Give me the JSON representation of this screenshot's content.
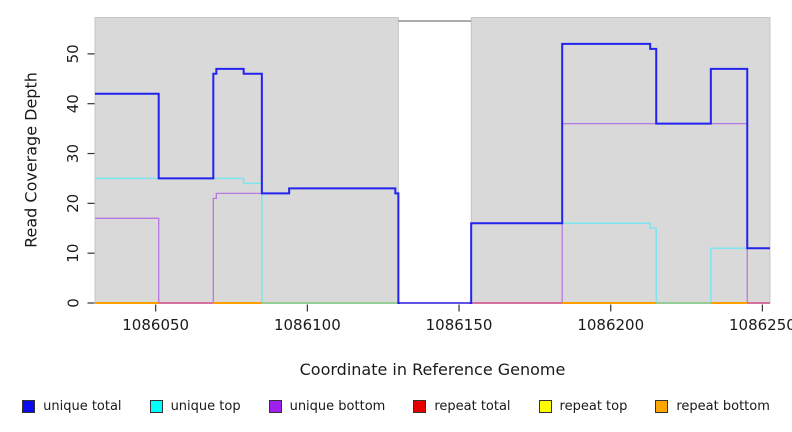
{
  "chart_data": {
    "type": "line",
    "step": true,
    "title": "",
    "xlabel": "Coordinate in Reference Genome",
    "ylabel": "Read Coverage Depth",
    "x_domain": [
      1086030,
      1086252.5
    ],
    "y_domain": [
      0,
      57.3
    ],
    "x_ticks": [
      1086050,
      1086100,
      1086150,
      1086200,
      1086250
    ],
    "y_ticks": [
      0,
      10,
      20,
      30,
      40,
      50
    ],
    "grid": false,
    "axis_color": "#333333",
    "text_color": "#1a1a1a",
    "plot_background": "#d9d9d9",
    "background_regions": [
      {
        "x0": 1086030,
        "x1": 1086130,
        "color": "#d9d9d9",
        "border": "#bcbcbc"
      },
      {
        "x0": 1086154,
        "x1": 1086252.5,
        "color": "#d9d9d9",
        "border": "#bcbcbc"
      }
    ],
    "gap_region": {
      "x0": 1086130,
      "x1": 1086154,
      "top_value": 56.6,
      "border_color": "#919191"
    },
    "series": [
      {
        "name": "repeat total",
        "color": "#e60000",
        "width": 2,
        "points": [
          [
            1086030,
            0
          ]
        ]
      },
      {
        "name": "repeat top",
        "color": "#ffff00",
        "width": 2,
        "points": [
          [
            1086030,
            0
          ]
        ]
      },
      {
        "name": "repeat bottom",
        "color": "#ffa500",
        "width": 2,
        "points": [
          [
            1086030,
            0
          ]
        ]
      },
      {
        "name": "unique top",
        "color": "#7fe5ef",
        "width": 1.5,
        "points": [
          [
            1086030,
            25
          ],
          [
            1086079,
            24
          ],
          [
            1086085,
            0
          ],
          [
            1086154,
            16
          ],
          [
            1086213,
            15
          ],
          [
            1086215,
            0
          ],
          [
            1086233,
            11
          ]
        ]
      },
      {
        "name": "unique bottom",
        "color": "#b778e3",
        "width": 1.3,
        "points": [
          [
            1086030,
            17
          ],
          [
            1086051,
            0
          ],
          [
            1086069,
            21
          ],
          [
            1086070,
            22
          ],
          [
            1086094,
            23
          ],
          [
            1086129,
            22
          ],
          [
            1086130,
            0
          ],
          [
            1086184,
            36
          ],
          [
            1086245,
            0
          ]
        ]
      },
      {
        "name": "unique total",
        "color": "#2323ee",
        "width": 2,
        "points": [
          [
            1086030,
            42
          ],
          [
            1086051,
            25
          ],
          [
            1086069,
            46
          ],
          [
            1086070,
            47
          ],
          [
            1086079,
            46
          ],
          [
            1086085,
            22
          ],
          [
            1086094,
            23
          ],
          [
            1086129,
            22
          ],
          [
            1086130,
            0
          ],
          [
            1086154,
            16
          ],
          [
            1086184,
            52
          ],
          [
            1086213,
            51
          ],
          [
            1086215,
            36
          ],
          [
            1086233,
            47
          ],
          [
            1086245,
            11
          ]
        ]
      }
    ],
    "baseline_segments": [
      {
        "x0": 1086030,
        "x1": 1086051,
        "color": "#ff9f00"
      },
      {
        "x0": 1086051,
        "x1": 1086069,
        "color": "#d4719c"
      },
      {
        "x0": 1086069,
        "x1": 1086085,
        "color": "#ff9f00"
      },
      {
        "x0": 1086085,
        "x1": 1086130,
        "color": "#97cb97"
      },
      {
        "x0": 1086130,
        "x1": 1086154,
        "color": "#6053e8",
        "above_total": true
      },
      {
        "x0": 1086154,
        "x1": 1086184,
        "color": "#d4719c"
      },
      {
        "x0": 1086184,
        "x1": 1086215,
        "color": "#ff9f00"
      },
      {
        "x0": 1086215,
        "x1": 1086233,
        "color": "#97cb97"
      },
      {
        "x0": 1086233,
        "x1": 1086245,
        "color": "#ff9f00"
      },
      {
        "x0": 1086245,
        "x1": 1086252.5,
        "color": "#d4719c"
      }
    ],
    "legend": {
      "position": "bottom",
      "items": [
        {
          "label": "unique total",
          "color": "#0b0bee"
        },
        {
          "label": "unique top",
          "color": "#00ffff"
        },
        {
          "label": "unique bottom",
          "color": "#a020f0"
        },
        {
          "label": "repeat total",
          "color": "#e60000"
        },
        {
          "label": "repeat top",
          "color": "#ffff00"
        },
        {
          "label": "repeat bottom",
          "color": "#ffa500"
        }
      ]
    }
  }
}
